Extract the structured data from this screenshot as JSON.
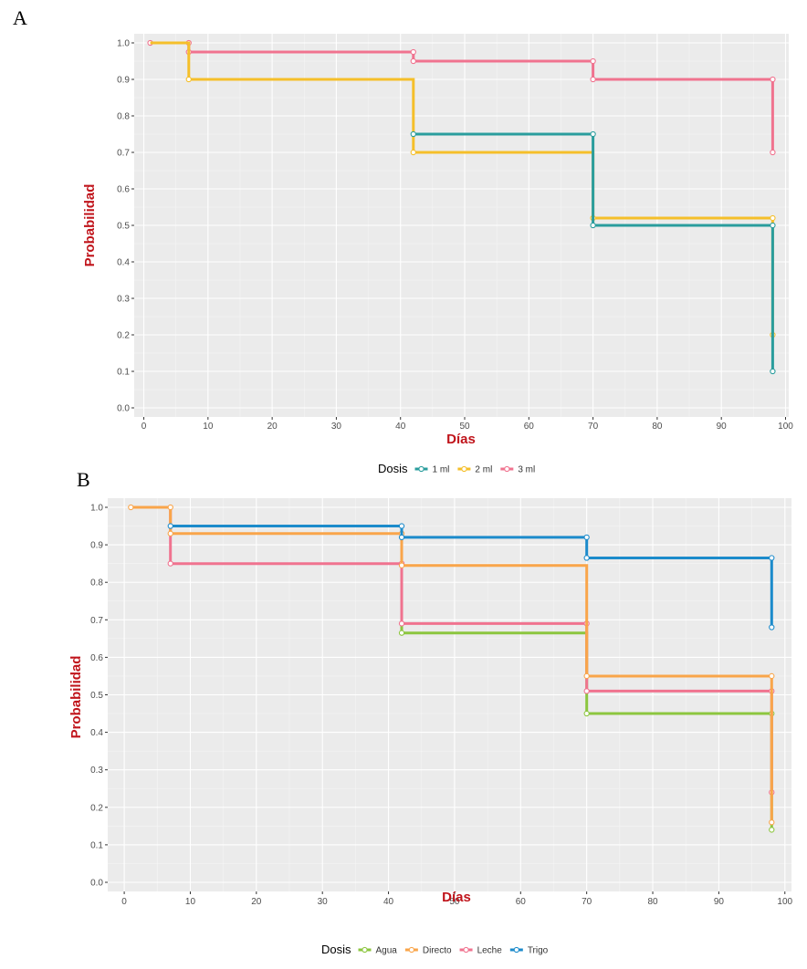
{
  "chart_data": [
    {
      "panel": "A",
      "type": "line",
      "step": true,
      "xlabel": "Días",
      "ylabel": "Probabilidad",
      "xlim": [
        0,
        100
      ],
      "ylim": [
        0,
        1
      ],
      "xticks": [
        0,
        10,
        20,
        30,
        40,
        50,
        60,
        70,
        80,
        90,
        100
      ],
      "yticks": [
        "0.0",
        "0.1",
        "0.2",
        "0.3",
        "0.4",
        "0.5",
        "0.6",
        "0.7",
        "0.8",
        "0.9",
        "1.0"
      ],
      "legend_title": "Dosis",
      "legend_position": "bottom",
      "series": [
        {
          "name": "3 ml",
          "color": "#f0738f",
          "points": [
            [
              1,
              1.0
            ],
            [
              7,
              1.0
            ],
            [
              7,
              0.975
            ],
            [
              42,
              0.975
            ],
            [
              42,
              0.95
            ],
            [
              70,
              0.95
            ],
            [
              70,
              0.9
            ],
            [
              98,
              0.9
            ],
            [
              98,
              0.7
            ]
          ],
          "markers": [
            [
              1,
              1.0
            ],
            [
              7,
              1.0
            ],
            [
              7,
              0.975
            ],
            [
              42,
              0.975
            ],
            [
              42,
              0.95
            ],
            [
              70,
              0.95
            ],
            [
              70,
              0.9
            ],
            [
              98,
              0.9
            ],
            [
              98,
              0.7
            ]
          ]
        },
        {
          "name": "2 ml",
          "color": "#f5bf2a",
          "points": [
            [
              1,
              1.0
            ],
            [
              7,
              1.0
            ],
            [
              7,
              0.9
            ],
            [
              42,
              0.9
            ],
            [
              42,
              0.7
            ],
            [
              70,
              0.7
            ],
            [
              70,
              0.52
            ],
            [
              98,
              0.52
            ],
            [
              98,
              0.2
            ]
          ],
          "markers": [
            [
              7,
              0.9
            ],
            [
              42,
              0.7
            ],
            [
              70,
              0.52
            ],
            [
              98,
              0.52
            ],
            [
              98,
              0.2
            ]
          ]
        },
        {
          "name": "1 ml",
          "color": "#2a9d9d",
          "points": [
            [
              42,
              0.75
            ],
            [
              70,
              0.75
            ],
            [
              70,
              0.5
            ],
            [
              98,
              0.5
            ],
            [
              98,
              0.1
            ]
          ],
          "markers": [
            [
              42,
              0.75
            ],
            [
              70,
              0.75
            ],
            [
              70,
              0.5
            ],
            [
              98,
              0.5
            ],
            [
              98,
              0.1
            ]
          ]
        }
      ],
      "legend_order": [
        "1 ml",
        "2 ml",
        "3 ml"
      ]
    },
    {
      "panel": "B",
      "type": "line",
      "step": true,
      "xlabel": "Días",
      "ylabel": "Probabilidad",
      "xlim": [
        0,
        100
      ],
      "ylim": [
        0,
        1
      ],
      "xticks": [
        0,
        10,
        20,
        30,
        40,
        50,
        60,
        70,
        80,
        90,
        100
      ],
      "yticks": [
        "0.0",
        "0.1",
        "0.2",
        "0.3",
        "0.4",
        "0.5",
        "0.6",
        "0.7",
        "0.8",
        "0.9",
        "1.0"
      ],
      "legend_title": "Dosis",
      "legend_position": "bottom",
      "series": [
        {
          "name": "Agua",
          "color": "#8cc63f",
          "points": [
            [
              42,
              0.69
            ],
            [
              42,
              0.665
            ],
            [
              70,
              0.665
            ],
            [
              70,
              0.45
            ],
            [
              98,
              0.45
            ],
            [
              98,
              0.14
            ]
          ],
          "markers": [
            [
              42,
              0.665
            ],
            [
              70,
              0.45
            ],
            [
              98,
              0.45
            ],
            [
              98,
              0.14
            ]
          ]
        },
        {
          "name": "Leche",
          "color": "#f0738f",
          "points": [
            [
              7,
              1.0
            ],
            [
              7,
              0.85
            ],
            [
              42,
              0.85
            ],
            [
              42,
              0.69
            ],
            [
              70,
              0.69
            ],
            [
              70,
              0.51
            ],
            [
              98,
              0.51
            ],
            [
              98,
              0.24
            ]
          ],
          "markers": [
            [
              7,
              0.85
            ],
            [
              42,
              0.85
            ],
            [
              42,
              0.69
            ],
            [
              70,
              0.69
            ],
            [
              70,
              0.51
            ],
            [
              98,
              0.51
            ],
            [
              98,
              0.24
            ]
          ]
        },
        {
          "name": "Directo",
          "color": "#f9a54a",
          "points": [
            [
              1,
              1.0
            ],
            [
              7,
              1.0
            ],
            [
              7,
              0.93
            ],
            [
              42,
              0.93
            ],
            [
              42,
              0.845
            ],
            [
              70,
              0.845
            ],
            [
              70,
              0.55
            ],
            [
              98,
              0.55
            ],
            [
              98,
              0.16
            ]
          ],
          "markers": [
            [
              1,
              1.0
            ],
            [
              7,
              1.0
            ],
            [
              7,
              0.93
            ],
            [
              42,
              0.93
            ],
            [
              42,
              0.845
            ],
            [
              70,
              0.55
            ],
            [
              98,
              0.55
            ],
            [
              98,
              0.16
            ]
          ]
        },
        {
          "name": "Trigo",
          "color": "#1c8bcb",
          "points": [
            [
              7,
              0.95
            ],
            [
              42,
              0.95
            ],
            [
              42,
              0.92
            ],
            [
              70,
              0.92
            ],
            [
              70,
              0.865
            ],
            [
              98,
              0.865
            ],
            [
              98,
              0.68
            ]
          ],
          "markers": [
            [
              7,
              0.95
            ],
            [
              42,
              0.95
            ],
            [
              42,
              0.92
            ],
            [
              70,
              0.92
            ],
            [
              70,
              0.865
            ],
            [
              98,
              0.865
            ],
            [
              98,
              0.68
            ]
          ]
        }
      ],
      "legend_order": [
        "Agua",
        "Directo",
        "Leche",
        "Trigo"
      ]
    }
  ]
}
